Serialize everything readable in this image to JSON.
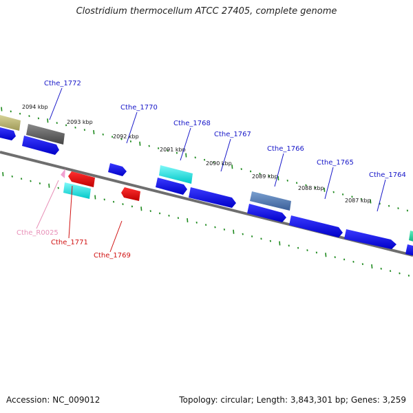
{
  "title": "Clostridium thermocellum ATCC 27405, complete genome",
  "footer": {
    "accession": "Accession: NC_009012",
    "summary": "Topology: circular; Length: 3,843,301 bp; Genes: 3,259"
  },
  "colors": {
    "backbone": "#8a8a8a",
    "tick": "#1e8a1e",
    "gene_label_forward": "#1515c8",
    "gene_label_reverse": "#d01010",
    "rna_label": "#e890b8"
  },
  "kbp_labels": [
    "2094 kbp",
    "2093 kbp",
    "2092 kbp",
    "2091 kbp",
    "2090 kbp",
    "2089 kbp",
    "2088 kbp",
    "2087 kbp"
  ],
  "gene_labels": [
    {
      "text": "Cthe_1772",
      "strand": "forward"
    },
    {
      "text": "Cthe_1770",
      "strand": "forward"
    },
    {
      "text": "Cthe_1768",
      "strand": "forward"
    },
    {
      "text": "Cthe_1767",
      "strand": "forward"
    },
    {
      "text": "Cthe_1766",
      "strand": "forward"
    },
    {
      "text": "Cthe_1765",
      "strand": "forward"
    },
    {
      "text": "Cthe_1764",
      "strand": "forward"
    },
    {
      "text": "Cthe_R0025",
      "strand": "reverse-rna"
    },
    {
      "text": "Cthe_1771",
      "strand": "reverse"
    },
    {
      "text": "Cthe_1769",
      "strand": "reverse"
    }
  ]
}
